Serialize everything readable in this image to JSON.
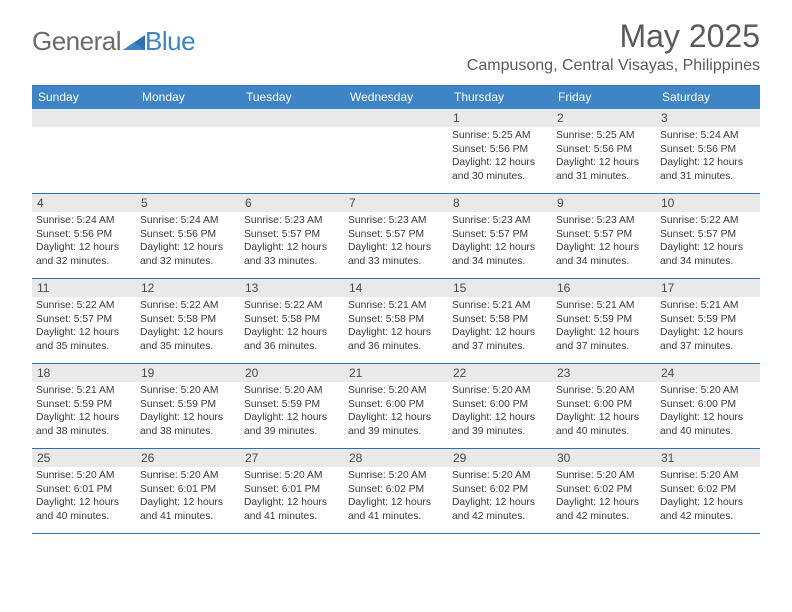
{
  "logo": {
    "text1": "General",
    "text2": "Blue"
  },
  "title": "May 2025",
  "location": "Campusong, Central Visayas, Philippines",
  "colors": {
    "header_bg": "#3d85c6",
    "border": "#2f70b5",
    "shade": "#e9e9e9",
    "text": "#3a3a3a",
    "title_text": "#5a5a5a"
  },
  "day_names": [
    "Sunday",
    "Monday",
    "Tuesday",
    "Wednesday",
    "Thursday",
    "Friday",
    "Saturday"
  ],
  "weeks": [
    [
      {
        "n": "",
        "empty": true
      },
      {
        "n": "",
        "empty": true
      },
      {
        "n": "",
        "empty": true
      },
      {
        "n": "",
        "empty": true
      },
      {
        "n": "1",
        "sr": "Sunrise: 5:25 AM",
        "ss": "Sunset: 5:56 PM",
        "dl": "Daylight: 12 hours and 30 minutes."
      },
      {
        "n": "2",
        "sr": "Sunrise: 5:25 AM",
        "ss": "Sunset: 5:56 PM",
        "dl": "Daylight: 12 hours and 31 minutes."
      },
      {
        "n": "3",
        "sr": "Sunrise: 5:24 AM",
        "ss": "Sunset: 5:56 PM",
        "dl": "Daylight: 12 hours and 31 minutes."
      }
    ],
    [
      {
        "n": "4",
        "sr": "Sunrise: 5:24 AM",
        "ss": "Sunset: 5:56 PM",
        "dl": "Daylight: 12 hours and 32 minutes."
      },
      {
        "n": "5",
        "sr": "Sunrise: 5:24 AM",
        "ss": "Sunset: 5:56 PM",
        "dl": "Daylight: 12 hours and 32 minutes."
      },
      {
        "n": "6",
        "sr": "Sunrise: 5:23 AM",
        "ss": "Sunset: 5:57 PM",
        "dl": "Daylight: 12 hours and 33 minutes."
      },
      {
        "n": "7",
        "sr": "Sunrise: 5:23 AM",
        "ss": "Sunset: 5:57 PM",
        "dl": "Daylight: 12 hours and 33 minutes."
      },
      {
        "n": "8",
        "sr": "Sunrise: 5:23 AM",
        "ss": "Sunset: 5:57 PM",
        "dl": "Daylight: 12 hours and 34 minutes."
      },
      {
        "n": "9",
        "sr": "Sunrise: 5:23 AM",
        "ss": "Sunset: 5:57 PM",
        "dl": "Daylight: 12 hours and 34 minutes."
      },
      {
        "n": "10",
        "sr": "Sunrise: 5:22 AM",
        "ss": "Sunset: 5:57 PM",
        "dl": "Daylight: 12 hours and 34 minutes."
      }
    ],
    [
      {
        "n": "11",
        "sr": "Sunrise: 5:22 AM",
        "ss": "Sunset: 5:57 PM",
        "dl": "Daylight: 12 hours and 35 minutes."
      },
      {
        "n": "12",
        "sr": "Sunrise: 5:22 AM",
        "ss": "Sunset: 5:58 PM",
        "dl": "Daylight: 12 hours and 35 minutes."
      },
      {
        "n": "13",
        "sr": "Sunrise: 5:22 AM",
        "ss": "Sunset: 5:58 PM",
        "dl": "Daylight: 12 hours and 36 minutes."
      },
      {
        "n": "14",
        "sr": "Sunrise: 5:21 AM",
        "ss": "Sunset: 5:58 PM",
        "dl": "Daylight: 12 hours and 36 minutes."
      },
      {
        "n": "15",
        "sr": "Sunrise: 5:21 AM",
        "ss": "Sunset: 5:58 PM",
        "dl": "Daylight: 12 hours and 37 minutes."
      },
      {
        "n": "16",
        "sr": "Sunrise: 5:21 AM",
        "ss": "Sunset: 5:59 PM",
        "dl": "Daylight: 12 hours and 37 minutes."
      },
      {
        "n": "17",
        "sr": "Sunrise: 5:21 AM",
        "ss": "Sunset: 5:59 PM",
        "dl": "Daylight: 12 hours and 37 minutes."
      }
    ],
    [
      {
        "n": "18",
        "sr": "Sunrise: 5:21 AM",
        "ss": "Sunset: 5:59 PM",
        "dl": "Daylight: 12 hours and 38 minutes."
      },
      {
        "n": "19",
        "sr": "Sunrise: 5:20 AM",
        "ss": "Sunset: 5:59 PM",
        "dl": "Daylight: 12 hours and 38 minutes."
      },
      {
        "n": "20",
        "sr": "Sunrise: 5:20 AM",
        "ss": "Sunset: 5:59 PM",
        "dl": "Daylight: 12 hours and 39 minutes."
      },
      {
        "n": "21",
        "sr": "Sunrise: 5:20 AM",
        "ss": "Sunset: 6:00 PM",
        "dl": "Daylight: 12 hours and 39 minutes."
      },
      {
        "n": "22",
        "sr": "Sunrise: 5:20 AM",
        "ss": "Sunset: 6:00 PM",
        "dl": "Daylight: 12 hours and 39 minutes."
      },
      {
        "n": "23",
        "sr": "Sunrise: 5:20 AM",
        "ss": "Sunset: 6:00 PM",
        "dl": "Daylight: 12 hours and 40 minutes."
      },
      {
        "n": "24",
        "sr": "Sunrise: 5:20 AM",
        "ss": "Sunset: 6:00 PM",
        "dl": "Daylight: 12 hours and 40 minutes."
      }
    ],
    [
      {
        "n": "25",
        "sr": "Sunrise: 5:20 AM",
        "ss": "Sunset: 6:01 PM",
        "dl": "Daylight: 12 hours and 40 minutes."
      },
      {
        "n": "26",
        "sr": "Sunrise: 5:20 AM",
        "ss": "Sunset: 6:01 PM",
        "dl": "Daylight: 12 hours and 41 minutes."
      },
      {
        "n": "27",
        "sr": "Sunrise: 5:20 AM",
        "ss": "Sunset: 6:01 PM",
        "dl": "Daylight: 12 hours and 41 minutes."
      },
      {
        "n": "28",
        "sr": "Sunrise: 5:20 AM",
        "ss": "Sunset: 6:02 PM",
        "dl": "Daylight: 12 hours and 41 minutes."
      },
      {
        "n": "29",
        "sr": "Sunrise: 5:20 AM",
        "ss": "Sunset: 6:02 PM",
        "dl": "Daylight: 12 hours and 42 minutes."
      },
      {
        "n": "30",
        "sr": "Sunrise: 5:20 AM",
        "ss": "Sunset: 6:02 PM",
        "dl": "Daylight: 12 hours and 42 minutes."
      },
      {
        "n": "31",
        "sr": "Sunrise: 5:20 AM",
        "ss": "Sunset: 6:02 PM",
        "dl": "Daylight: 12 hours and 42 minutes."
      }
    ]
  ]
}
